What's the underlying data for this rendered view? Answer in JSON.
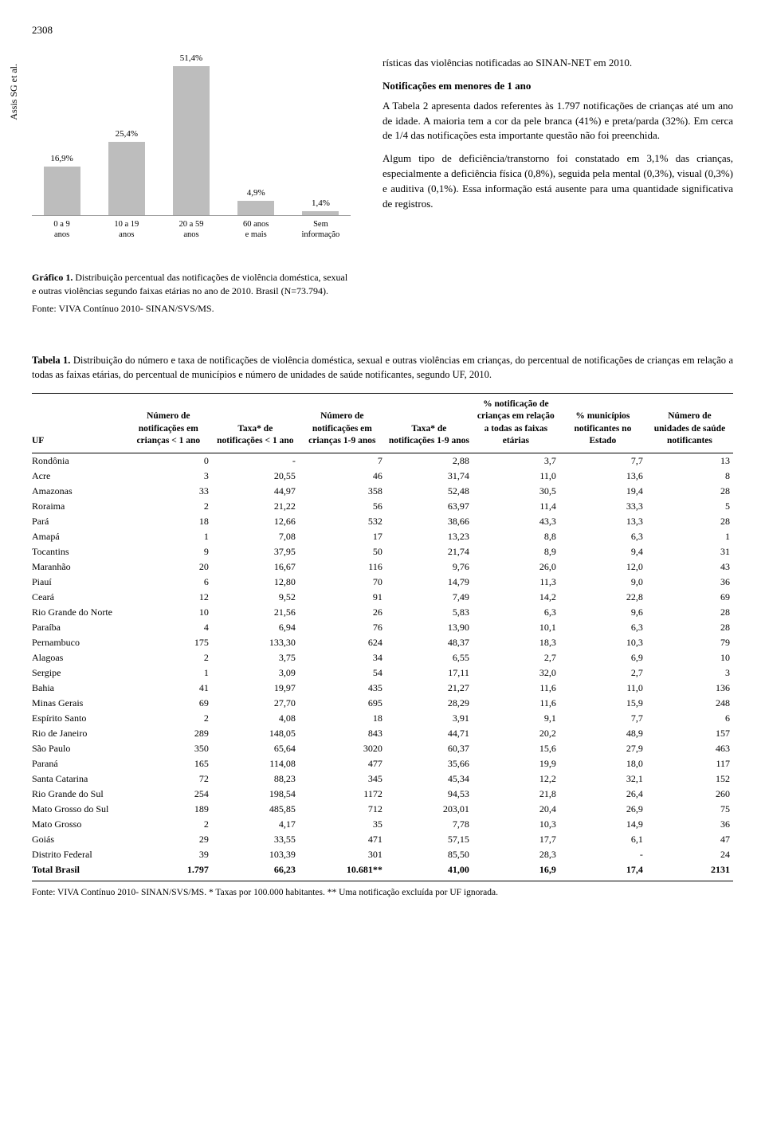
{
  "page_number": "2308",
  "sideways_author": "Assis SG et al.",
  "intro_right": {
    "line1": "rísticas das violências notificadas ao SINAN-NET em 2010.",
    "sub_heading": "Notificações em menores de 1 ano",
    "para1": "A Tabela 2 apresenta dados referentes às 1.797 notificações de crianças até um ano de idade. A maioria tem a cor da pele branca (41%) e preta/parda (32%). Em cerca de 1/4 das notificações esta importante questão não foi preenchida.",
    "para2": "Algum tipo de deficiência/transtorno foi constatado em 3,1% das crianças, especialmente a deficiência física (0,8%), seguida pela mental (0,3%), visual (0,3%) e auditiva (0,1%). Essa informação está ausente para uma quantidade significativa de registros."
  },
  "chart": {
    "type": "bar",
    "caption_bold": "Gráfico 1.",
    "caption_rest": " Distribuição percentual das notificações de violência doméstica, sexual e outras violências segundo faixas etárias no ano de 2010. Brasil (N=73.794).",
    "source": "Fonte: VIVA Contínuo 2010- SINAN/SVS/MS.",
    "bar_color": "#bdbdbd",
    "max_value": 55,
    "bars": [
      {
        "label": "16,9%",
        "xlabel": "0 a 9\nanos",
        "value": 16.9
      },
      {
        "label": "25,4%",
        "xlabel": "10 a 19\nanos",
        "value": 25.4
      },
      {
        "label": "51,4%",
        "xlabel": "20 a 59\nanos",
        "value": 51.4
      },
      {
        "label": "4,9%",
        "xlabel": "60 anos\ne mais",
        "value": 4.9
      },
      {
        "label": "1,4%",
        "xlabel": "Sem\ninformação",
        "value": 1.4
      }
    ]
  },
  "table": {
    "title_bold": "Tabela 1.",
    "title_rest": " Distribuição do número e taxa de notificações de violência doméstica, sexual e outras violências em crianças, do percentual de notificações de crianças em relação a todas as faixas etárias, do percentual de municípios e número de unidades de saúde notificantes, segundo UF, 2010.",
    "columns": [
      "UF",
      "Número de notificações em crianças < 1 ano",
      "Taxa* de notificações < 1 ano",
      "Número de notificações em crianças 1-9 anos",
      "Taxa* de notificações 1-9 anos",
      "% notificação de crianças em relação a todas as faixas etárias",
      "% municípios notificantes no Estado",
      "Número de unidades de saúde notificantes"
    ],
    "rows": [
      [
        "Rondônia",
        "0",
        "-",
        "7",
        "2,88",
        "3,7",
        "7,7",
        "13"
      ],
      [
        "Acre",
        "3",
        "20,55",
        "46",
        "31,74",
        "11,0",
        "13,6",
        "8"
      ],
      [
        "Amazonas",
        "33",
        "44,97",
        "358",
        "52,48",
        "30,5",
        "19,4",
        "28"
      ],
      [
        "Roraima",
        "2",
        "21,22",
        "56",
        "63,97",
        "11,4",
        "33,3",
        "5"
      ],
      [
        "Pará",
        "18",
        "12,66",
        "532",
        "38,66",
        "43,3",
        "13,3",
        "28"
      ],
      [
        "Amapá",
        "1",
        "7,08",
        "17",
        "13,23",
        "8,8",
        "6,3",
        "1"
      ],
      [
        "Tocantins",
        "9",
        "37,95",
        "50",
        "21,74",
        "8,9",
        "9,4",
        "31"
      ],
      [
        "Maranhão",
        "20",
        "16,67",
        "116",
        "9,76",
        "26,0",
        "12,0",
        "43"
      ],
      [
        "Piauí",
        "6",
        "12,80",
        "70",
        "14,79",
        "11,3",
        "9,0",
        "36"
      ],
      [
        "Ceará",
        "12",
        "9,52",
        "91",
        "7,49",
        "14,2",
        "22,8",
        "69"
      ],
      [
        "Rio Grande do Norte",
        "10",
        "21,56",
        "26",
        "5,83",
        "6,3",
        "9,6",
        "28"
      ],
      [
        "Paraíba",
        "4",
        "6,94",
        "76",
        "13,90",
        "10,1",
        "6,3",
        "28"
      ],
      [
        "Pernambuco",
        "175",
        "133,30",
        "624",
        "48,37",
        "18,3",
        "10,3",
        "79"
      ],
      [
        "Alagoas",
        "2",
        "3,75",
        "34",
        "6,55",
        "2,7",
        "6,9",
        "10"
      ],
      [
        "Sergipe",
        "1",
        "3,09",
        "54",
        "17,11",
        "32,0",
        "2,7",
        "3"
      ],
      [
        "Bahia",
        "41",
        "19,97",
        "435",
        "21,27",
        "11,6",
        "11,0",
        "136"
      ],
      [
        "Minas Gerais",
        "69",
        "27,70",
        "695",
        "28,29",
        "11,6",
        "15,9",
        "248"
      ],
      [
        "Espírito Santo",
        "2",
        "4,08",
        "18",
        "3,91",
        "9,1",
        "7,7",
        "6"
      ],
      [
        "Rio de Janeiro",
        "289",
        "148,05",
        "843",
        "44,71",
        "20,2",
        "48,9",
        "157"
      ],
      [
        "São Paulo",
        "350",
        "65,64",
        "3020",
        "60,37",
        "15,6",
        "27,9",
        "463"
      ],
      [
        "Paraná",
        "165",
        "114,08",
        "477",
        "35,66",
        "19,9",
        "18,0",
        "117"
      ],
      [
        "Santa Catarina",
        "72",
        "88,23",
        "345",
        "45,34",
        "12,2",
        "32,1",
        "152"
      ],
      [
        "Rio Grande do Sul",
        "254",
        "198,54",
        "1172",
        "94,53",
        "21,8",
        "26,4",
        "260"
      ],
      [
        "Mato Grosso do Sul",
        "189",
        "485,85",
        "712",
        "203,01",
        "20,4",
        "26,9",
        "75"
      ],
      [
        "Mato Grosso",
        "2",
        "4,17",
        "35",
        "7,78",
        "10,3",
        "14,9",
        "36"
      ],
      [
        "Goiás",
        "29",
        "33,55",
        "471",
        "57,15",
        "17,7",
        "6,1",
        "47"
      ],
      [
        "Distrito Federal",
        "39",
        "103,39",
        "301",
        "85,50",
        "28,3",
        "-",
        "24"
      ]
    ],
    "total_row": [
      "Total Brasil",
      "1.797",
      "66,23",
      "10.681**",
      "41,00",
      "16,9",
      "17,4",
      "2131"
    ],
    "footnote": "Fonte: VIVA Contínuo 2010- SINAN/SVS/MS. * Taxas por 100.000 habitantes. ** Uma notificação excluída por UF ignorada."
  }
}
